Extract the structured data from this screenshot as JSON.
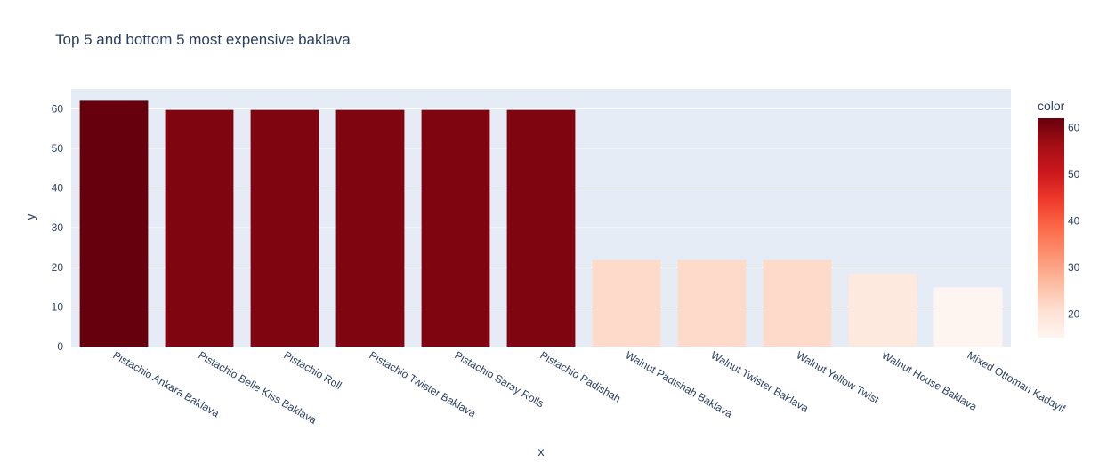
{
  "chart_data": {
    "type": "bar",
    "title": "Top 5 and bottom 5 most expensive baklava",
    "xlabel": "x",
    "ylabel": "y",
    "categories": [
      "Pistachio Ankara Baklava",
      "Pistachio Belle Kiss Baklava",
      "Pistachio Roll",
      "Pistachio Twister Baklava",
      "Pistachio Saray Rolls",
      "Pistachio Padishah",
      "Walnut Padishah Baklava",
      "Walnut Twister Baklava",
      "Walnut Yellow Twist",
      "Walnut House Baklava",
      "Mixed Ottoman Kadayif"
    ],
    "values": [
      62,
      59.7,
      59.7,
      59.7,
      59.7,
      59.7,
      21.8,
      21.8,
      21.8,
      18.4,
      14.9
    ],
    "ylim": [
      0,
      65
    ],
    "yticks": [
      0,
      10,
      20,
      30,
      40,
      50,
      60
    ],
    "grid": true,
    "colorbar": {
      "title": "color",
      "range": [
        14.9,
        62
      ],
      "ticks": [
        20,
        30,
        40,
        50,
        60
      ],
      "colorscale": "Reds",
      "stops": [
        "#fff5f0",
        "#fee0d2",
        "#fcbba1",
        "#fc9272",
        "#fb6a4a",
        "#ef3b2c",
        "#cb181d",
        "#a50f15",
        "#67000d"
      ]
    },
    "colors": {
      "plot_bg": "#e5ecf6",
      "grid": "#ffffff",
      "text": "#2a3f5f"
    }
  }
}
